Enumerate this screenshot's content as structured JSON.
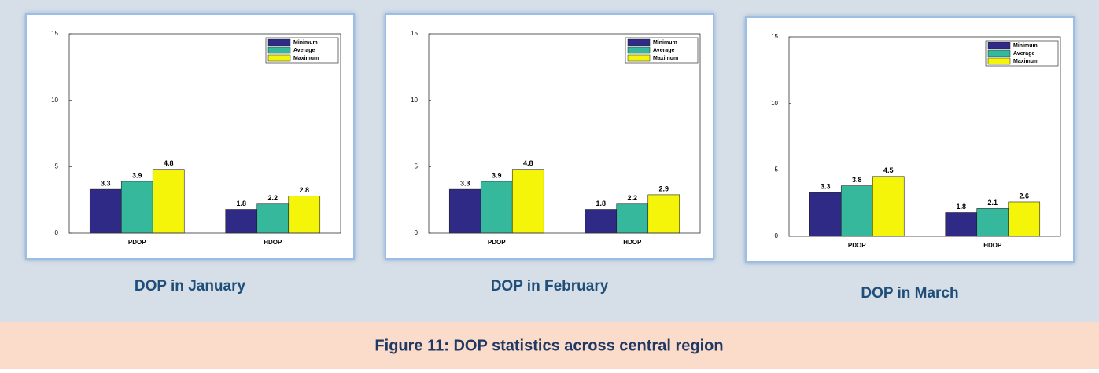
{
  "chart_data": [
    {
      "type": "bar",
      "title": "DOP in January",
      "categories": [
        "PDOP",
        "HDOP"
      ],
      "series": [
        {
          "name": "Minimum",
          "color": "#2e2a85",
          "values": [
            3.3,
            1.8
          ]
        },
        {
          "name": "Average",
          "color": "#35b89b",
          "values": [
            3.9,
            2.2
          ]
        },
        {
          "name": "Maximum",
          "color": "#f5f50a",
          "values": [
            4.8,
            2.8
          ]
        }
      ],
      "ylim": [
        0,
        15
      ],
      "yticks": [
        0,
        5,
        10,
        15
      ],
      "legend": "upper right"
    },
    {
      "type": "bar",
      "title": "DOP in February",
      "categories": [
        "PDOP",
        "HDOP"
      ],
      "series": [
        {
          "name": "Minimum",
          "color": "#2e2a85",
          "values": [
            3.3,
            1.8
          ]
        },
        {
          "name": "Average",
          "color": "#35b89b",
          "values": [
            3.9,
            2.2
          ]
        },
        {
          "name": "Maximum",
          "color": "#f5f50a",
          "values": [
            4.8,
            2.9
          ]
        }
      ],
      "ylim": [
        0,
        15
      ],
      "yticks": [
        0,
        5,
        10,
        15
      ],
      "legend": "upper right"
    },
    {
      "type": "bar",
      "title": "DOP in March",
      "categories": [
        "PDOP",
        "HDOP"
      ],
      "series": [
        {
          "name": "Minimum",
          "color": "#2e2a85",
          "values": [
            3.3,
            1.8
          ]
        },
        {
          "name": "Average",
          "color": "#35b89b",
          "values": [
            3.8,
            2.1
          ]
        },
        {
          "name": "Maximum",
          "color": "#f5f50a",
          "values": [
            4.5,
            2.6
          ]
        }
      ],
      "ylim": [
        0,
        15
      ],
      "yticks": [
        0,
        5,
        10,
        15
      ],
      "legend": "upper right"
    }
  ],
  "figure": {
    "caption": "Figure 11: DOP statistics across central region"
  }
}
